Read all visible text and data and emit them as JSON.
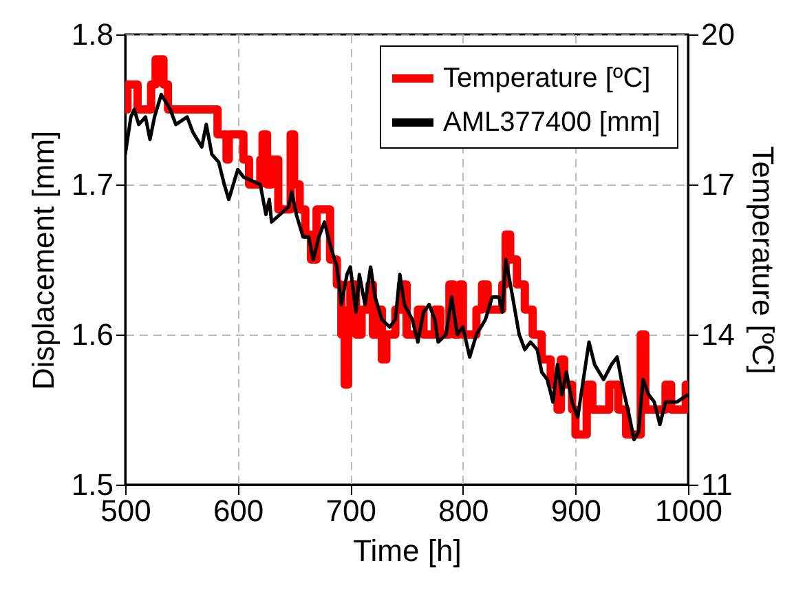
{
  "chart_data": {
    "type": "line",
    "xlabel": "Time [h]",
    "ylabel": "Displacement [mm]",
    "y2label": "Temperature [ºC]",
    "xlim": [
      500,
      1000
    ],
    "xticks": [
      500,
      600,
      700,
      800,
      900,
      1000
    ],
    "ylim": [
      1.5,
      1.8
    ],
    "yticks": [
      1.5,
      1.6,
      1.7,
      1.8
    ],
    "y2lim": [
      11,
      20
    ],
    "y2ticks": [
      11,
      14,
      17,
      20
    ],
    "grid": true,
    "legend": "top right",
    "line_style": "solid",
    "series": [
      {
        "name": "Temperature [ºC]",
        "type": "step",
        "axis": "y2",
        "color": "#ff0000",
        "x": [
          500,
          502,
          511,
          523,
          527,
          534,
          538,
          582,
          590,
          592,
          595,
          605,
          610,
          620,
          622,
          626,
          630,
          636,
          647,
          650,
          655,
          660,
          665,
          670,
          682,
          688,
          692,
          695,
          698,
          700,
          705,
          710,
          717,
          720,
          725,
          728,
          732,
          740,
          745,
          750,
          760,
          765,
          775,
          780,
          788,
          792,
          797,
          800,
          812,
          817,
          822,
          835,
          838,
          842,
          848,
          855,
          862,
          870,
          878,
          884,
          887,
          890,
          897,
          900,
          910,
          915,
          930,
          938,
          945,
          958,
          962,
          980,
          985,
          998,
          1000
        ],
        "values": [
          18.5,
          19,
          18.5,
          19,
          19.5,
          19,
          18.5,
          18,
          17.5,
          18,
          18,
          17.5,
          17,
          17.5,
          18,
          17,
          17.5,
          16.5,
          18,
          17,
          16.5,
          16,
          15.5,
          16.5,
          15.5,
          15,
          14,
          13,
          14.5,
          15,
          14,
          14.5,
          15,
          14,
          14.5,
          13.5,
          14,
          14.5,
          15,
          14,
          14.5,
          14,
          14.5,
          14,
          15,
          14,
          15,
          14,
          14.5,
          15,
          14.5,
          15,
          16,
          15.5,
          15,
          14.5,
          14,
          13.5,
          13,
          12.5,
          13.5,
          13,
          12.5,
          12,
          13,
          12.5,
          13,
          12.5,
          12,
          14,
          12.5,
          13,
          12.5,
          13,
          12.5
        ]
      },
      {
        "name": "AML377400  [mm]",
        "color": "#000000",
        "x": [
          500,
          505,
          508,
          512,
          518,
          522,
          526,
          532,
          540,
          545,
          555,
          560,
          568,
          572,
          577,
          583,
          588,
          592,
          596,
          600,
          605,
          620,
          625,
          628,
          630,
          645,
          648,
          652,
          658,
          663,
          667,
          672,
          677,
          682,
          688,
          692,
          697,
          700,
          705,
          708,
          713,
          718,
          722,
          728,
          735,
          740,
          744,
          748,
          755,
          760,
          765,
          770,
          775,
          778,
          785,
          790,
          795,
          800,
          806,
          812,
          820,
          826,
          832,
          835,
          838,
          843,
          850,
          855,
          860,
          866,
          870,
          875,
          880,
          884,
          888,
          892,
          897,
          902,
          907,
          912,
          917,
          925,
          932,
          937,
          942,
          948,
          952,
          956,
          960,
          965,
          970,
          975,
          980,
          990,
          1000
        ],
        "values": [
          1.72,
          1.745,
          1.75,
          1.74,
          1.745,
          1.73,
          1.745,
          1.76,
          1.75,
          1.74,
          1.745,
          1.735,
          1.725,
          1.74,
          1.72,
          1.715,
          1.7,
          1.69,
          1.7,
          1.71,
          1.705,
          1.7,
          1.68,
          1.69,
          1.675,
          1.685,
          1.695,
          1.68,
          1.665,
          1.665,
          1.65,
          1.665,
          1.675,
          1.66,
          1.645,
          1.62,
          1.64,
          1.645,
          1.615,
          1.64,
          1.62,
          1.645,
          1.625,
          1.61,
          1.605,
          1.61,
          1.64,
          1.62,
          1.61,
          1.595,
          1.615,
          1.62,
          1.61,
          1.595,
          1.6,
          1.625,
          1.6,
          1.605,
          1.585,
          1.6,
          1.61,
          1.625,
          1.625,
          1.615,
          1.65,
          1.63,
          1.6,
          1.59,
          1.595,
          1.59,
          1.575,
          1.57,
          1.555,
          1.58,
          1.56,
          1.575,
          1.555,
          1.545,
          1.57,
          1.595,
          1.58,
          1.57,
          1.58,
          1.585,
          1.565,
          1.545,
          1.53,
          1.535,
          1.57,
          1.56,
          1.555,
          1.54,
          1.555,
          1.555,
          1.56
        ]
      }
    ]
  }
}
